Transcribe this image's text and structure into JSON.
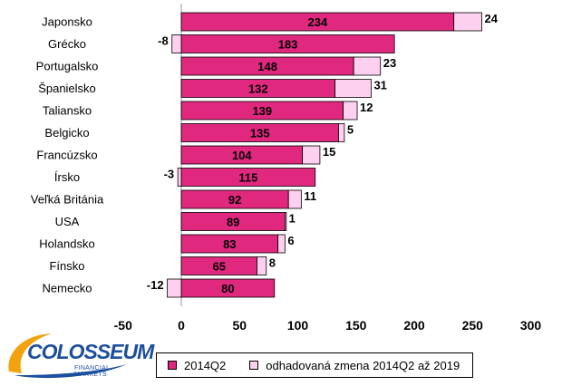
{
  "chart_data": {
    "type": "bar",
    "orientation": "horizontal",
    "stacked": true,
    "categories": [
      "Japonsko",
      "Grécko",
      "Portugalsko",
      "Španielsko",
      "Taliansko",
      "Belgicko",
      "Francúzsko",
      "Írsko",
      "Veľká Británia",
      "USA",
      "Holandsko",
      "Fínsko",
      "Nemecko"
    ],
    "series": [
      {
        "name": "2014Q2",
        "color": "#e0287f",
        "values": [
          234,
          183,
          148,
          132,
          139,
          135,
          104,
          115,
          92,
          89,
          83,
          65,
          80
        ]
      },
      {
        "name": "odhadovaná zmena 2014Q2 až 2019",
        "color": "#fcd0ee",
        "values": [
          24,
          -8,
          23,
          31,
          12,
          5,
          15,
          -3,
          11,
          1,
          6,
          8,
          -12
        ]
      }
    ],
    "xlim": [
      -50,
      300
    ],
    "xticks": [
      -50,
      0,
      50,
      100,
      150,
      200,
      250,
      300
    ],
    "grid": false,
    "legend": "bottom"
  },
  "logo": {
    "name": "COLOSSEUM",
    "tagline": "FINANCIAL MARKETS"
  }
}
